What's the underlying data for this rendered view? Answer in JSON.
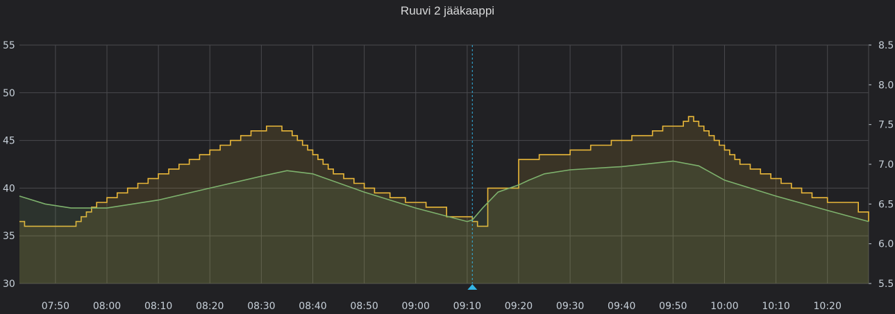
{
  "panel": {
    "title": "Ruuvi 2 jääkaappi"
  },
  "colors": {
    "background": "#212124",
    "grid": "#4a4a4e",
    "series_stepped": "#eab839",
    "series_smooth": "#7eb26d",
    "crosshair": "#33b5e5",
    "tick_text": "#c7d0d9"
  },
  "chart_data": {
    "type": "line",
    "title": "Ruuvi 2 jääkaappi",
    "xlabel": "",
    "ylabel_left": "",
    "ylabel_right": "",
    "grid": true,
    "legend": "none",
    "x_range": [
      "07:43",
      "10:28"
    ],
    "x_ticks": [
      "07:50",
      "08:00",
      "08:10",
      "08:20",
      "08:30",
      "08:40",
      "08:50",
      "09:00",
      "09:10",
      "09:20",
      "09:30",
      "09:40",
      "09:50",
      "10:00",
      "10:10",
      "10:20"
    ],
    "y_left": {
      "range": [
        30,
        55
      ],
      "ticks": [
        "30",
        "35",
        "40",
        "45",
        "50",
        "55"
      ]
    },
    "y_right": {
      "range": [
        5.5,
        8.5
      ],
      "ticks": [
        "5.5",
        "6.0",
        "6.5",
        "7.0",
        "7.5",
        "8.0",
        "8.5"
      ]
    },
    "crosshair_time": "09:11",
    "series": [
      {
        "axis": "left",
        "style": "stepped",
        "x": [
          "07:43",
          "07:44",
          "07:52",
          "07:54",
          "07:55",
          "07:56",
          "07:57",
          "07:58",
          "08:00",
          "08:02",
          "08:04",
          "08:06",
          "08:08",
          "08:10",
          "08:12",
          "08:14",
          "08:16",
          "08:18",
          "08:20",
          "08:22",
          "08:24",
          "08:26",
          "08:28",
          "08:31",
          "08:34",
          "08:36",
          "08:37",
          "08:38",
          "08:39",
          "08:40",
          "08:41",
          "08:42",
          "08:43",
          "08:44",
          "08:46",
          "08:48",
          "08:50",
          "08:52",
          "08:55",
          "08:58",
          "09:02",
          "09:06",
          "09:11",
          "09:12",
          "09:14",
          "09:20",
          "09:24",
          "09:30",
          "09:34",
          "09:38",
          "09:42",
          "09:46",
          "09:48",
          "09:52",
          "09:53",
          "09:54",
          "09:55",
          "09:56",
          "09:57",
          "09:58",
          "09:59",
          "10:00",
          "10:01",
          "10:02",
          "10:03",
          "10:05",
          "10:07",
          "10:09",
          "10:11",
          "10:13",
          "10:15",
          "10:17",
          "10:20",
          "10:26",
          "10:28"
        ],
        "values": [
          36.5,
          36,
          36,
          36.5,
          37,
          37.5,
          38,
          38.5,
          39,
          39.5,
          40,
          40.5,
          41,
          41.5,
          42,
          42.5,
          43,
          43.5,
          44,
          44.5,
          45,
          45.5,
          46,
          46.5,
          46,
          45.5,
          45,
          44.5,
          44,
          43.5,
          43,
          42.5,
          42,
          41.5,
          41,
          40.5,
          40,
          39.5,
          39,
          38.5,
          38,
          37,
          36.5,
          36,
          40,
          43,
          43.5,
          44,
          44.5,
          45,
          45.5,
          46,
          46.5,
          47,
          47.5,
          47,
          46.5,
          46,
          45.5,
          45,
          44.5,
          44,
          43.5,
          43,
          42.5,
          42,
          41.5,
          41,
          40.5,
          40,
          39.5,
          39,
          38.5,
          37.5,
          36.5
        ]
      },
      {
        "axis": "right",
        "style": "smooth",
        "x": [
          "07:43",
          "07:48",
          "07:53",
          "08:00",
          "08:10",
          "08:20",
          "08:30",
          "08:35",
          "08:40",
          "08:50",
          "09:00",
          "09:10",
          "09:11",
          "09:13",
          "09:16",
          "09:20",
          "09:22",
          "09:25",
          "09:30",
          "09:40",
          "09:50",
          "09:55",
          "10:00",
          "10:10",
          "10:20",
          "10:28"
        ],
        "values": [
          6.6,
          6.5,
          6.45,
          6.45,
          6.55,
          6.7,
          6.85,
          6.92,
          6.88,
          6.65,
          6.45,
          6.28,
          6.3,
          6.45,
          6.65,
          6.74,
          6.8,
          6.88,
          6.93,
          6.97,
          7.04,
          6.98,
          6.8,
          6.6,
          6.42,
          6.28
        ]
      }
    ]
  }
}
